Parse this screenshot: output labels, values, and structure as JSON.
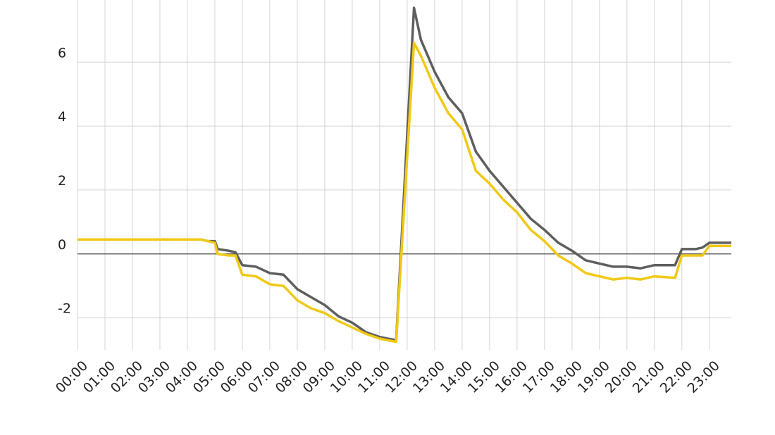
{
  "chart_data": {
    "type": "line",
    "x": [
      0,
      4,
      4.5,
      4.75,
      5,
      5.1,
      5.5,
      5.75,
      6,
      6.5,
      7,
      7.5,
      8,
      8.5,
      9,
      9.5,
      10,
      10.5,
      11,
      11.6,
      12.25,
      12.5,
      13,
      13.5,
      14,
      14.5,
      15,
      15.5,
      16,
      16.5,
      17,
      17.5,
      18,
      18.5,
      19,
      19.5,
      20,
      20.5,
      21,
      21.75,
      22,
      22.5,
      22.75,
      23,
      23.8
    ],
    "series": [
      {
        "color": "#5e5e5e",
        "values": [
          0.45,
          0.45,
          0.45,
          0.4,
          0.4,
          0.15,
          0.1,
          0.05,
          -0.35,
          -0.4,
          -0.6,
          -0.65,
          -1.1,
          -1.35,
          -1.6,
          -1.95,
          -2.15,
          -2.45,
          -2.6,
          -2.7,
          7.7,
          6.7,
          5.7,
          4.9,
          4.4,
          3.2,
          2.6,
          2.1,
          1.6,
          1.1,
          0.75,
          0.35,
          0.1,
          -0.2,
          -0.3,
          -0.4,
          -0.4,
          -0.45,
          -0.35,
          -0.35,
          0.15,
          0.15,
          0.2,
          0.35,
          0.35
        ]
      },
      {
        "color": "#f0c916",
        "values": [
          0.45,
          0.45,
          0.45,
          0.4,
          0.35,
          0.0,
          -0.05,
          -0.05,
          -0.65,
          -0.7,
          -0.95,
          -1.0,
          -1.45,
          -1.7,
          -1.85,
          -2.1,
          -2.3,
          -2.5,
          -2.65,
          -2.75,
          6.6,
          6.2,
          5.2,
          4.4,
          3.9,
          2.6,
          2.2,
          1.7,
          1.3,
          0.75,
          0.4,
          -0.05,
          -0.3,
          -0.6,
          -0.7,
          -0.8,
          -0.75,
          -0.8,
          -0.7,
          -0.75,
          -0.05,
          -0.05,
          -0.05,
          0.25,
          0.25
        ]
      }
    ],
    "xlim": [
      0,
      23.8
    ],
    "xticks": [
      {
        "value": 0,
        "label": "00:00"
      },
      {
        "value": 1,
        "label": "01:00"
      },
      {
        "value": 2,
        "label": "02:00"
      },
      {
        "value": 3,
        "label": "03:00"
      },
      {
        "value": 4,
        "label": "04:00"
      },
      {
        "value": 5,
        "label": "05:00"
      },
      {
        "value": 6,
        "label": "06:00"
      },
      {
        "value": 7,
        "label": "07:00"
      },
      {
        "value": 8,
        "label": "08:00"
      },
      {
        "value": 9,
        "label": "09:00"
      },
      {
        "value": 10,
        "label": "10:00"
      },
      {
        "value": 11,
        "label": "11:00"
      },
      {
        "value": 12,
        "label": "12:00"
      },
      {
        "value": 13,
        "label": "13:00"
      },
      {
        "value": 14,
        "label": "14:00"
      },
      {
        "value": 15,
        "label": "15:00"
      },
      {
        "value": 16,
        "label": "16:00"
      },
      {
        "value": 17,
        "label": "17:00"
      },
      {
        "value": 18,
        "label": "18:00"
      },
      {
        "value": 19,
        "label": "19:00"
      },
      {
        "value": 20,
        "label": "20:00"
      },
      {
        "value": 21,
        "label": "21:00"
      },
      {
        "value": 22,
        "label": "22:00"
      },
      {
        "value": 23,
        "label": "23:00"
      }
    ],
    "ylim": [
      -3,
      7.9
    ],
    "yticks": [
      -2,
      0,
      2,
      4,
      6
    ],
    "grid": true
  }
}
